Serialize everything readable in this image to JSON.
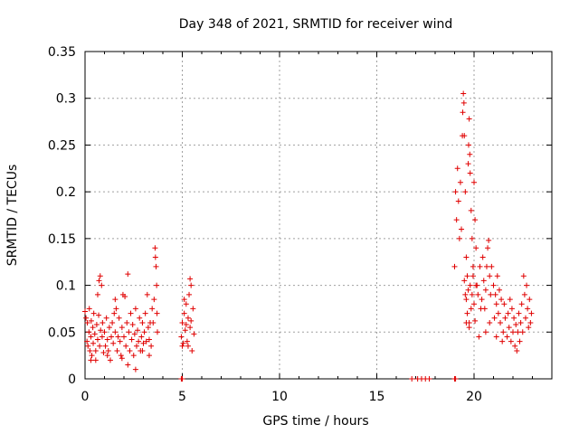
{
  "chart_data": {
    "type": "scatter",
    "title": "Day 348 of 2021, SRMTID for receiver wind",
    "xlabel": "GPS time / hours",
    "ylabel": "SRMTID / TECUs",
    "xlim": [
      0,
      24
    ],
    "ylim": [
      0,
      0.35
    ],
    "xticks": [
      0,
      5,
      10,
      15,
      20
    ],
    "xtick_labels": [
      "0",
      "5",
      "10",
      "15",
      "20"
    ],
    "yticks": [
      0,
      0.05,
      0.1,
      0.15,
      0.2,
      0.25,
      0.3,
      0.35
    ],
    "ytick_labels": [
      "0",
      "0.05",
      "0.1",
      "0.15",
      "0.2",
      "0.25",
      "0.3",
      "0.35"
    ],
    "grid": true,
    "marker": "plus",
    "color": "#e00000",
    "series": [
      {
        "name": "SRMTID",
        "points": [
          [
            0.0,
            0.072
          ],
          [
            0.05,
            0.065
          ],
          [
            0.1,
            0.04
          ],
          [
            0.12,
            0.06
          ],
          [
            0.15,
            0.035
          ],
          [
            0.2,
            0.05
          ],
          [
            0.22,
            0.075
          ],
          [
            0.25,
            0.03
          ],
          [
            0.3,
            0.045
          ],
          [
            0.32,
            0.062
          ],
          [
            0.35,
            0.025
          ],
          [
            0.4,
            0.055
          ],
          [
            0.42,
            0.038
          ],
          [
            0.45,
            0.07
          ],
          [
            0.5,
            0.048
          ],
          [
            0.55,
            0.03
          ],
          [
            0.6,
            0.058
          ],
          [
            0.65,
            0.042
          ],
          [
            0.7,
            0.068
          ],
          [
            0.72,
            0.105
          ],
          [
            0.75,
            0.035
          ],
          [
            0.78,
            0.11
          ],
          [
            0.8,
            0.052
          ],
          [
            0.85,
            0.1
          ],
          [
            0.88,
            0.045
          ],
          [
            0.9,
            0.06
          ],
          [
            0.95,
            0.028
          ],
          [
            1.0,
            0.05
          ],
          [
            1.05,
            0.035
          ],
          [
            1.1,
            0.065
          ],
          [
            1.15,
            0.042
          ],
          [
            1.2,
            0.03
          ],
          [
            1.25,
            0.055
          ],
          [
            1.3,
            0.02
          ],
          [
            1.35,
            0.045
          ],
          [
            1.4,
            0.06
          ],
          [
            1.45,
            0.038
          ],
          [
            1.5,
            0.07
          ],
          [
            1.55,
            0.05
          ],
          [
            1.6,
            0.075
          ],
          [
            1.65,
            0.03
          ],
          [
            1.7,
            0.045
          ],
          [
            1.75,
            0.065
          ],
          [
            1.8,
            0.04
          ],
          [
            1.85,
            0.025
          ],
          [
            1.9,
            0.055
          ],
          [
            1.95,
            0.09
          ],
          [
            2.0,
            0.045
          ],
          [
            2.05,
            0.088
          ],
          [
            2.1,
            0.035
          ],
          [
            2.15,
            0.06
          ],
          [
            2.2,
            0.112
          ],
          [
            2.25,
            0.05
          ],
          [
            2.3,
            0.03
          ],
          [
            2.35,
            0.07
          ],
          [
            2.4,
            0.042
          ],
          [
            2.45,
            0.058
          ],
          [
            2.5,
            0.025
          ],
          [
            2.55,
            0.048
          ],
          [
            2.6,
            0.075
          ],
          [
            2.65,
            0.035
          ],
          [
            2.7,
            0.052
          ],
          [
            2.75,
            0.04
          ],
          [
            2.8,
            0.065
          ],
          [
            2.85,
            0.03
          ],
          [
            2.9,
            0.045
          ],
          [
            2.95,
            0.06
          ],
          [
            3.0,
            0.038
          ],
          [
            3.05,
            0.05
          ],
          [
            3.1,
            0.07
          ],
          [
            3.15,
            0.04
          ],
          [
            3.2,
            0.09
          ],
          [
            3.25,
            0.055
          ],
          [
            3.3,
            0.042
          ],
          [
            3.35,
            0.06
          ],
          [
            3.4,
            0.035
          ],
          [
            3.45,
            0.075
          ],
          [
            3.5,
            0.06
          ],
          [
            3.55,
            0.085
          ],
          [
            3.6,
            0.14
          ],
          [
            3.62,
            0.13
          ],
          [
            3.65,
            0.12
          ],
          [
            3.68,
            0.1
          ],
          [
            3.7,
            0.07
          ],
          [
            3.72,
            0.05
          ],
          [
            0.55,
            0.02
          ],
          [
            1.15,
            0.025
          ],
          [
            2.2,
            0.015
          ],
          [
            2.6,
            0.01
          ],
          [
            1.9,
            0.022
          ],
          [
            0.3,
            0.02
          ],
          [
            3.3,
            0.025
          ],
          [
            2.95,
            0.03
          ],
          [
            1.55,
            0.085
          ],
          [
            0.65,
            0.09
          ],
          [
            4.95,
            0.045
          ],
          [
            5.0,
            0.06
          ],
          [
            5.05,
            0.038
          ],
          [
            5.1,
            0.07
          ],
          [
            5.15,
            0.052
          ],
          [
            5.2,
            0.08
          ],
          [
            5.25,
            0.04
          ],
          [
            5.3,
            0.065
          ],
          [
            5.35,
            0.09
          ],
          [
            5.4,
            0.055
          ],
          [
            5.45,
            0.1
          ],
          [
            5.5,
            0.03
          ],
          [
            5.55,
            0.075
          ],
          [
            5.6,
            0.048
          ],
          [
            5.1,
            0.085
          ],
          [
            5.3,
            0.035
          ],
          [
            5.45,
            0.062
          ],
          [
            5.0,
            0.035
          ],
          [
            5.2,
            0.058
          ],
          [
            5.4,
            0.107
          ],
          [
            4.95,
            0.0
          ],
          [
            5.0,
            0.0
          ],
          [
            16.8,
            0.0
          ],
          [
            17.1,
            0.0
          ],
          [
            17.3,
            0.0
          ],
          [
            17.5,
            0.0
          ],
          [
            17.7,
            0.0
          ],
          [
            19.0,
            0.0
          ],
          [
            19.05,
            0.0
          ],
          [
            19.0,
            0.12
          ],
          [
            19.05,
            0.2
          ],
          [
            19.1,
            0.17
          ],
          [
            19.15,
            0.225
          ],
          [
            19.2,
            0.19
          ],
          [
            19.25,
            0.15
          ],
          [
            19.3,
            0.21
          ],
          [
            19.35,
            0.16
          ],
          [
            19.4,
            0.26
          ],
          [
            19.42,
            0.285
          ],
          [
            19.45,
            0.305
          ],
          [
            19.48,
            0.295
          ],
          [
            19.5,
            0.26
          ],
          [
            19.55,
            0.2
          ],
          [
            19.6,
            0.13
          ],
          [
            19.65,
            0.11
          ],
          [
            19.7,
            0.23
          ],
          [
            19.72,
            0.25
          ],
          [
            19.75,
            0.278
          ],
          [
            19.78,
            0.24
          ],
          [
            19.8,
            0.22
          ],
          [
            19.85,
            0.18
          ],
          [
            19.9,
            0.15
          ],
          [
            19.95,
            0.12
          ],
          [
            20.0,
            0.21
          ],
          [
            20.05,
            0.17
          ],
          [
            20.1,
            0.14
          ],
          [
            20.15,
            0.1
          ],
          [
            19.6,
            0.085
          ],
          [
            19.65,
            0.07
          ],
          [
            19.7,
            0.095
          ],
          [
            19.75,
            0.06
          ],
          [
            19.8,
            0.1
          ],
          [
            19.85,
            0.075
          ],
          [
            19.9,
            0.09
          ],
          [
            19.95,
            0.11
          ],
          [
            20.0,
            0.08
          ],
          [
            20.1,
            0.1
          ],
          [
            20.2,
            0.09
          ],
          [
            20.3,
            0.12
          ],
          [
            20.4,
            0.085
          ],
          [
            20.5,
            0.105
          ],
          [
            20.55,
            0.075
          ],
          [
            20.6,
            0.095
          ],
          [
            20.7,
            0.14
          ],
          [
            20.75,
            0.148
          ],
          [
            20.8,
            0.11
          ],
          [
            20.85,
            0.09
          ],
          [
            20.9,
            0.12
          ],
          [
            21.0,
            0.1
          ],
          [
            21.05,
            0.065
          ],
          [
            21.1,
            0.09
          ],
          [
            21.15,
            0.08
          ],
          [
            21.2,
            0.11
          ],
          [
            21.25,
            0.07
          ],
          [
            21.3,
            0.095
          ],
          [
            21.35,
            0.06
          ],
          [
            21.4,
            0.085
          ],
          [
            21.5,
            0.05
          ],
          [
            21.55,
            0.08
          ],
          [
            21.6,
            0.065
          ],
          [
            21.7,
            0.045
          ],
          [
            21.75,
            0.07
          ],
          [
            21.8,
            0.055
          ],
          [
            21.85,
            0.085
          ],
          [
            21.9,
            0.04
          ],
          [
            21.95,
            0.075
          ],
          [
            22.0,
            0.05
          ],
          [
            22.05,
            0.065
          ],
          [
            22.1,
            0.035
          ],
          [
            22.15,
            0.058
          ],
          [
            22.2,
            0.03
          ],
          [
            22.25,
            0.05
          ],
          [
            22.3,
            0.07
          ],
          [
            22.35,
            0.04
          ],
          [
            22.4,
            0.06
          ],
          [
            22.45,
            0.08
          ],
          [
            22.5,
            0.05
          ],
          [
            22.55,
            0.11
          ],
          [
            22.6,
            0.09
          ],
          [
            22.65,
            0.065
          ],
          [
            22.7,
            0.1
          ],
          [
            22.75,
            0.075
          ],
          [
            22.8,
            0.055
          ],
          [
            22.85,
            0.085
          ],
          [
            22.9,
            0.06
          ],
          [
            22.95,
            0.07
          ],
          [
            19.6,
            0.06
          ],
          [
            19.75,
            0.055
          ],
          [
            20.25,
            0.045
          ],
          [
            20.6,
            0.05
          ],
          [
            21.45,
            0.04
          ],
          [
            20.05,
            0.062
          ],
          [
            20.35,
            0.075
          ],
          [
            20.8,
            0.06
          ],
          [
            21.15,
            0.045
          ],
          [
            20.45,
            0.13
          ],
          [
            20.65,
            0.12
          ],
          [
            19.5,
            0.105
          ],
          [
            19.55,
            0.09
          ]
        ]
      }
    ]
  }
}
